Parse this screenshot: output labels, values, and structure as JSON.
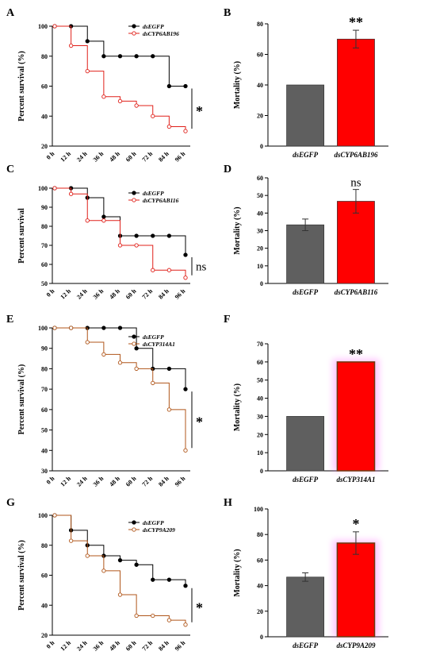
{
  "chart_data": [
    {
      "panel": "A",
      "type": "line",
      "step": true,
      "xlabel": "",
      "ylabel": "Percent survival (%)",
      "ylim": [
        20,
        100
      ],
      "yticks": [
        20,
        40,
        60,
        80,
        100
      ],
      "x": [
        "0 h",
        "12 h",
        "24 h",
        "36 h",
        "48 h",
        "60 h",
        "72 h",
        "84 h",
        "96 h"
      ],
      "series": [
        {
          "name": "dsEGFP",
          "color": "#000000",
          "marker": "filled",
          "values": [
            100,
            100,
            90,
            80,
            80,
            80,
            80,
            60,
            60
          ]
        },
        {
          "name": "dsCYP6AB196",
          "color": "#e0201a",
          "marker": "open",
          "values": [
            100,
            87,
            70,
            53,
            50,
            47,
            40,
            33,
            30
          ]
        }
      ],
      "significance": "*"
    },
    {
      "panel": "B",
      "type": "bar",
      "xlabel": "",
      "ylabel": "Mortality (%)",
      "ylim": [
        0,
        80
      ],
      "yticks": [
        0,
        20,
        40,
        60,
        80
      ],
      "categories": [
        "dsEGFP",
        "dsCYP6AB196"
      ],
      "values": [
        40,
        70
      ],
      "errors": [
        0,
        5.8
      ],
      "colors": [
        "#5f5f5f",
        "#ff0000"
      ],
      "significance": "**",
      "glow": false
    },
    {
      "panel": "C",
      "type": "line",
      "step": true,
      "xlabel": "",
      "ylabel": "Percent survival",
      "ylim": [
        50,
        100
      ],
      "yticks": [
        50,
        60,
        70,
        80,
        90,
        100
      ],
      "x": [
        "0 h",
        "12 h",
        "24 h",
        "36 h",
        "48 h",
        "60 h",
        "72 h",
        "84 h",
        "96 h"
      ],
      "series": [
        {
          "name": "dsEGFP",
          "color": "#000000",
          "marker": "filled",
          "values": [
            100,
            100,
            95,
            85,
            75,
            75,
            75,
            75,
            65
          ]
        },
        {
          "name": "dsCYP6AB116",
          "color": "#e0201a",
          "marker": "open",
          "values": [
            100,
            97,
            83,
            83,
            70,
            70,
            57,
            57,
            53
          ]
        }
      ],
      "significance": "ns"
    },
    {
      "panel": "D",
      "type": "bar",
      "xlabel": "",
      "ylabel": "Mortality (%)",
      "ylim": [
        0,
        60
      ],
      "yticks": [
        0,
        10,
        20,
        30,
        40,
        50,
        60
      ],
      "categories": [
        "dsEGFP",
        "dsCYP6AB116"
      ],
      "values": [
        33.3,
        46.7
      ],
      "errors": [
        3.3,
        6.7
      ],
      "colors": [
        "#5f5f5f",
        "#ff0000"
      ],
      "significance": "ns",
      "glow": false
    },
    {
      "panel": "E",
      "type": "line",
      "step": true,
      "xlabel": "",
      "ylabel": "Percent survival (%)",
      "ylim": [
        30,
        100
      ],
      "yticks": [
        30,
        40,
        50,
        60,
        70,
        80,
        90,
        100
      ],
      "x": [
        "0 h",
        "12 h",
        "24 h",
        "36 h",
        "48 h",
        "60 h",
        "72 h",
        "84 h",
        "96 h"
      ],
      "series": [
        {
          "name": "dsEGFP",
          "color": "#000000",
          "marker": "filled",
          "values": [
            100,
            100,
            100,
            100,
            100,
            90,
            80,
            80,
            70
          ]
        },
        {
          "name": "dsCYP314A1",
          "color": "#b0561a",
          "marker": "open",
          "values": [
            100,
            100,
            93,
            87,
            83,
            80,
            73,
            60,
            40
          ]
        }
      ],
      "significance": "*"
    },
    {
      "panel": "F",
      "type": "bar",
      "xlabel": "",
      "ylabel": "Mortality (%)",
      "ylim": [
        0,
        70
      ],
      "yticks": [
        0,
        10,
        20,
        30,
        40,
        50,
        60,
        70
      ],
      "categories": [
        "dsEGFP",
        "dsCYP314A1"
      ],
      "values": [
        30,
        60
      ],
      "errors": [
        0,
        0
      ],
      "colors": [
        "#5f5f5f",
        "#ff0000"
      ],
      "significance": "**",
      "glow": true
    },
    {
      "panel": "G",
      "type": "line",
      "step": true,
      "xlabel": "",
      "ylabel": "Percent survival (%)",
      "ylim": [
        20,
        100
      ],
      "yticks": [
        20,
        40,
        60,
        80,
        100
      ],
      "x": [
        "0 h",
        "12 h",
        "24 h",
        "36 h",
        "48 h",
        "60 h",
        "72 h",
        "84 h",
        "96 h"
      ],
      "series": [
        {
          "name": "dsEGFP",
          "color": "#000000",
          "marker": "filled",
          "values": [
            100,
            90,
            80,
            73,
            70,
            67,
            57,
            57,
            53
          ]
        },
        {
          "name": "dsCYP9A209",
          "color": "#b0561a",
          "marker": "open",
          "values": [
            100,
            83,
            73,
            63,
            47,
            33,
            33,
            30,
            27
          ]
        }
      ],
      "significance": "*"
    },
    {
      "panel": "H",
      "type": "bar",
      "xlabel": "",
      "ylabel": "Mortality (%)",
      "ylim": [
        0,
        100
      ],
      "yticks": [
        0,
        20,
        40,
        60,
        80,
        100
      ],
      "categories": [
        "dsEGFP",
        "dsCYP9A209"
      ],
      "values": [
        46.7,
        73.3
      ],
      "errors": [
        3.3,
        8.8
      ],
      "colors": [
        "#5f5f5f",
        "#ff0000"
      ],
      "significance": "*",
      "glow": true
    }
  ]
}
